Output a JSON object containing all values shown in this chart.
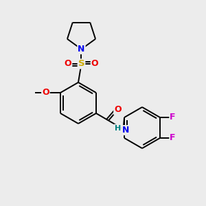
{
  "background_color": "#ececec",
  "atom_colors": {
    "C": "#000000",
    "N": "#0000ee",
    "O": "#ee0000",
    "S": "#ccaa00",
    "F": "#cc00cc",
    "H": "#008080"
  },
  "bond_color": "#000000",
  "bond_width": 1.4,
  "fig_width": 3.0,
  "fig_height": 3.0,
  "dpi": 100
}
